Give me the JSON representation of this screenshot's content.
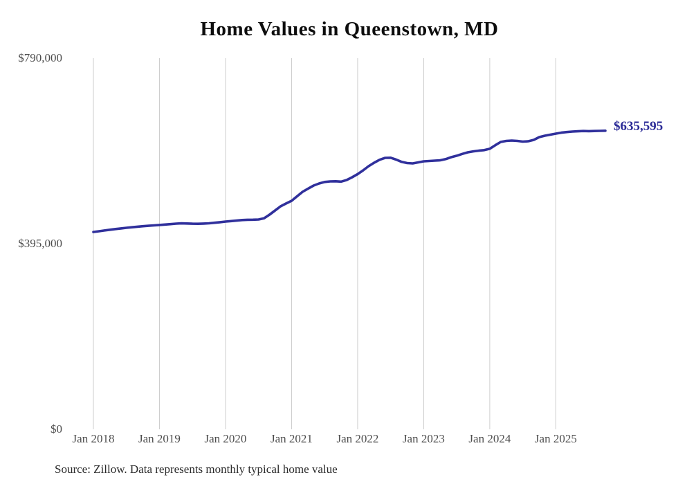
{
  "chart_data": {
    "type": "line",
    "title": "Home Values in Queenstown, MD",
    "source_note": "Source: Zillow. Data represents monthly typical home value",
    "legend": "none",
    "grid": "vertical-only",
    "colors": {
      "line": "#30309c",
      "end_label": "#2b2b97",
      "gridline": "#cdcdcd",
      "tick_label": "#4d4d4d",
      "title": "#0d0d0d",
      "source": "#2b2b2b",
      "background": "#ffffff"
    },
    "y_axis": {
      "range": [
        0,
        790000
      ],
      "ticks": [
        {
          "value": 790000,
          "label": "$790,000"
        },
        {
          "value": 395000,
          "label": "$395,000"
        },
        {
          "value": 0,
          "label": "$0"
        }
      ]
    },
    "x_axis": {
      "tick_labels": [
        "Jan 2018",
        "Jan 2019",
        "Jan 2020",
        "Jan 2021",
        "Jan 2022",
        "Jan 2023",
        "Jan 2024",
        "Jan 2025"
      ],
      "months_per_tick": 12
    },
    "series": [
      {
        "name": "Typical home value",
        "end_label": "$635,595",
        "end_value": 635595,
        "months": [
          "2018-01",
          "2018-02",
          "2018-03",
          "2018-04",
          "2018-05",
          "2018-06",
          "2018-07",
          "2018-08",
          "2018-09",
          "2018-10",
          "2018-11",
          "2018-12",
          "2019-01",
          "2019-02",
          "2019-03",
          "2019-04",
          "2019-05",
          "2019-06",
          "2019-07",
          "2019-08",
          "2019-09",
          "2019-10",
          "2019-11",
          "2019-12",
          "2020-01",
          "2020-02",
          "2020-03",
          "2020-04",
          "2020-05",
          "2020-06",
          "2020-07",
          "2020-08",
          "2020-09",
          "2020-10",
          "2020-11",
          "2020-12",
          "2021-01",
          "2021-02",
          "2021-03",
          "2021-04",
          "2021-05",
          "2021-06",
          "2021-07",
          "2021-08",
          "2021-09",
          "2021-10",
          "2021-11",
          "2021-12",
          "2022-01",
          "2022-02",
          "2022-03",
          "2022-04",
          "2022-05",
          "2022-06",
          "2022-07",
          "2022-08",
          "2022-09",
          "2022-10",
          "2022-11",
          "2022-12",
          "2023-01",
          "2023-02",
          "2023-03",
          "2023-04",
          "2023-05",
          "2023-06",
          "2023-07",
          "2023-08",
          "2023-09",
          "2023-10",
          "2023-11",
          "2023-12",
          "2024-01",
          "2024-02",
          "2024-03",
          "2024-04",
          "2024-05",
          "2024-06",
          "2024-07",
          "2024-08",
          "2024-09",
          "2024-10",
          "2024-11",
          "2024-12",
          "2025-01",
          "2025-02",
          "2025-03",
          "2025-04",
          "2025-05",
          "2025-06",
          "2025-07",
          "2025-08",
          "2025-09",
          "2025-10"
        ],
        "values": [
          420000,
          421600,
          423100,
          424700,
          426200,
          427600,
          428900,
          430100,
          431200,
          432300,
          433200,
          434100,
          435000,
          435800,
          436700,
          437800,
          438400,
          438100,
          437600,
          437500,
          437900,
          438500,
          439600,
          440900,
          442100,
          443200,
          444300,
          445400,
          446000,
          446100,
          446600,
          449200,
          456900,
          465700,
          474600,
          480600,
          486400,
          496000,
          505600,
          512300,
          518800,
          523200,
          526400,
          527700,
          528000,
          527200,
          530600,
          536500,
          543100,
          551200,
          560100,
          567400,
          573800,
          577800,
          578100,
          574100,
          569200,
          566700,
          566000,
          568200,
          570400,
          571100,
          571800,
          572600,
          575100,
          579200,
          582400,
          586100,
          589500,
          591600,
          593100,
          594300,
          597000,
          604800,
          611700,
          613900,
          614600,
          613900,
          612400,
          613100,
          616100,
          622000,
          624900,
          627100,
          629300,
          631400,
          632800,
          633800,
          634400,
          634900,
          634600,
          634900,
          635200,
          635595
        ]
      }
    ]
  }
}
